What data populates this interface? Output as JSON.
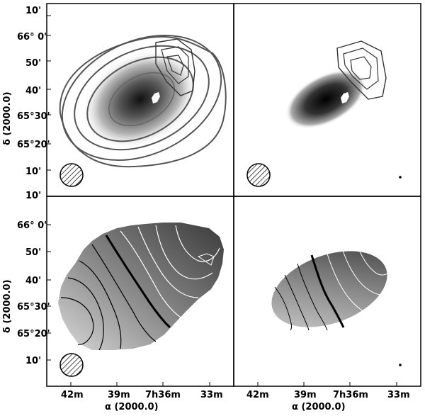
{
  "y_axis": {
    "label": "δ (2000.0)",
    "top_ticks": [
      "10'",
      "66° 0'",
      "50'",
      "40'",
      "65°30'",
      "65°20'",
      "10'",
      "10'"
    ],
    "bottom_ticks": [
      "66° 0'",
      "50'",
      "40'",
      "65°30'",
      "65°20'",
      "10'"
    ]
  },
  "x_axis": {
    "label": "α (2000.0)",
    "ticks_left": [
      "42m",
      "39m",
      "7h36m",
      "33m"
    ],
    "ticks_right": [
      "42m",
      "39m",
      "7h36m",
      "33m"
    ]
  },
  "panels": [
    {
      "id": "top-left",
      "content": "intensity map with contours"
    },
    {
      "id": "top-right",
      "content": "optical image with contours"
    },
    {
      "id": "bottom-left",
      "content": "velocity field low resolution"
    },
    {
      "id": "bottom-right",
      "content": "velocity field high resolution"
    }
  ]
}
